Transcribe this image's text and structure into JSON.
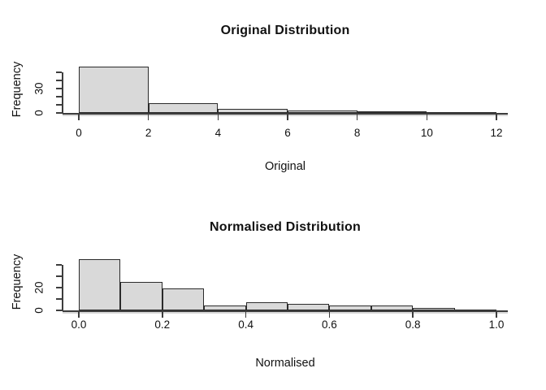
{
  "page": {
    "background": "#ffffff"
  },
  "colors": {
    "bar_fill": "#d9d9d9",
    "bar_border": "#2b2b2b",
    "axis_line": "#3d3d3d",
    "axis_shadow": "#a8a8a8",
    "text": "#111111"
  },
  "chart_data": [
    {
      "type": "bar",
      "variant": "histogram",
      "title": "Original Distribution",
      "xlabel": "Original",
      "ylabel": "Frequency",
      "xlim": [
        0,
        12
      ],
      "ylim": [
        0,
        50
      ],
      "grid": false,
      "legend": false,
      "bin_edges": [
        0,
        2,
        4,
        6,
        8,
        10,
        12
      ],
      "counts": [
        57,
        12,
        5,
        3,
        2,
        1
      ],
      "x_ticks": [
        {
          "value": 0,
          "label": "0"
        },
        {
          "value": 2,
          "label": "2"
        },
        {
          "value": 4,
          "label": "4"
        },
        {
          "value": 6,
          "label": "6"
        },
        {
          "value": 8,
          "label": "8"
        },
        {
          "value": 10,
          "label": "10"
        },
        {
          "value": 12,
          "label": "12"
        }
      ],
      "y_ticks": [
        {
          "value": 0,
          "label": "0"
        },
        {
          "value": 10,
          "label": ""
        },
        {
          "value": 20,
          "label": ""
        },
        {
          "value": 30,
          "label": "30"
        },
        {
          "value": 40,
          "label": ""
        },
        {
          "value": 50,
          "label": ""
        }
      ]
    },
    {
      "type": "bar",
      "variant": "histogram",
      "title": "Normalised Distribution",
      "xlabel": "Normalised",
      "ylabel": "Frequency",
      "xlim": [
        0,
        1
      ],
      "ylim": [
        0,
        40
      ],
      "grid": false,
      "legend": false,
      "bin_edges": [
        0,
        0.1,
        0.2,
        0.3,
        0.4,
        0.5,
        0.6,
        0.7,
        0.8,
        0.9,
        1.0
      ],
      "counts": [
        45,
        25,
        19,
        4,
        7,
        6,
        4,
        4,
        2,
        1
      ],
      "x_ticks": [
        {
          "value": 0,
          "label": "0.0"
        },
        {
          "value": 0.2,
          "label": "0.2"
        },
        {
          "value": 0.4,
          "label": "0.4"
        },
        {
          "value": 0.6,
          "label": "0.6"
        },
        {
          "value": 0.8,
          "label": "0.8"
        },
        {
          "value": 1.0,
          "label": "1.0"
        }
      ],
      "y_ticks": [
        {
          "value": 0,
          "label": "0"
        },
        {
          "value": 10,
          "label": ""
        },
        {
          "value": 20,
          "label": "20"
        },
        {
          "value": 30,
          "label": ""
        },
        {
          "value": 40,
          "label": ""
        }
      ]
    }
  ]
}
